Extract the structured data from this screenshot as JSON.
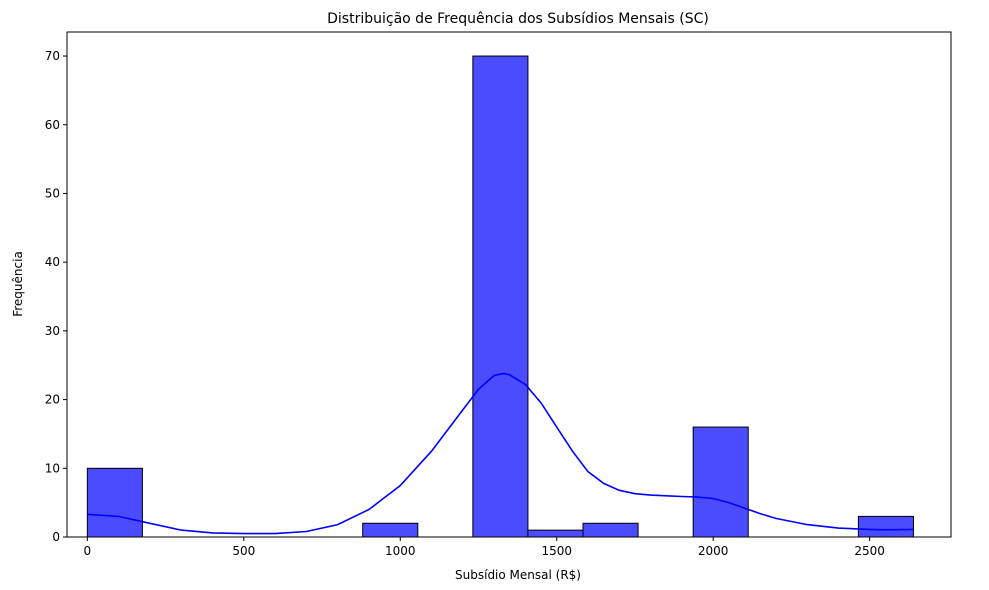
{
  "chart_data": {
    "type": "bar",
    "subtype": "histogram-with-kde",
    "title": "Distribuição de Frequência dos Subsídios Mensais (SC)",
    "xlabel": "Subsídio Mensal (R$)",
    "ylabel": "Frequência",
    "xlim": [
      -65,
      2760
    ],
    "ylim": [
      0,
      73.5
    ],
    "xticks": [
      0,
      500,
      1000,
      1500,
      2000,
      2500
    ],
    "yticks": [
      0,
      10,
      20,
      30,
      40,
      50,
      60,
      70
    ],
    "grid": false,
    "legend": null,
    "bar_color": "#4b4bff",
    "bar_edge_color": "#000000",
    "kde_color": "#0000ff",
    "bins": [
      {
        "x0": 0,
        "x1": 176,
        "count": 10
      },
      {
        "x0": 880,
        "x1": 1056,
        "count": 2
      },
      {
        "x0": 1232,
        "x1": 1408,
        "count": 70
      },
      {
        "x0": 1408,
        "x1": 1584,
        "count": 1
      },
      {
        "x0": 1584,
        "x1": 1760,
        "count": 2
      },
      {
        "x0": 1936,
        "x1": 2112,
        "count": 16
      },
      {
        "x0": 2464,
        "x1": 2640,
        "count": 3
      }
    ],
    "kde": {
      "x": [
        0,
        100,
        200,
        300,
        400,
        500,
        600,
        700,
        800,
        900,
        1000,
        1100,
        1150,
        1200,
        1250,
        1300,
        1330,
        1350,
        1400,
        1450,
        1500,
        1550,
        1600,
        1650,
        1700,
        1750,
        1800,
        1850,
        1900,
        1950,
        2000,
        2050,
        2100,
        2150,
        2200,
        2300,
        2400,
        2500,
        2550,
        2640
      ],
      "y": [
        3.3,
        3.0,
        2.0,
        1.0,
        0.6,
        0.5,
        0.5,
        0.8,
        1.8,
        4.0,
        7.5,
        12.5,
        15.5,
        18.5,
        21.5,
        23.5,
        23.8,
        23.6,
        22.2,
        19.5,
        16.0,
        12.5,
        9.5,
        7.8,
        6.8,
        6.3,
        6.1,
        6.0,
        5.9,
        5.8,
        5.6,
        5.0,
        4.2,
        3.4,
        2.7,
        1.8,
        1.3,
        1.1,
        1.05,
        1.1
      ]
    }
  }
}
